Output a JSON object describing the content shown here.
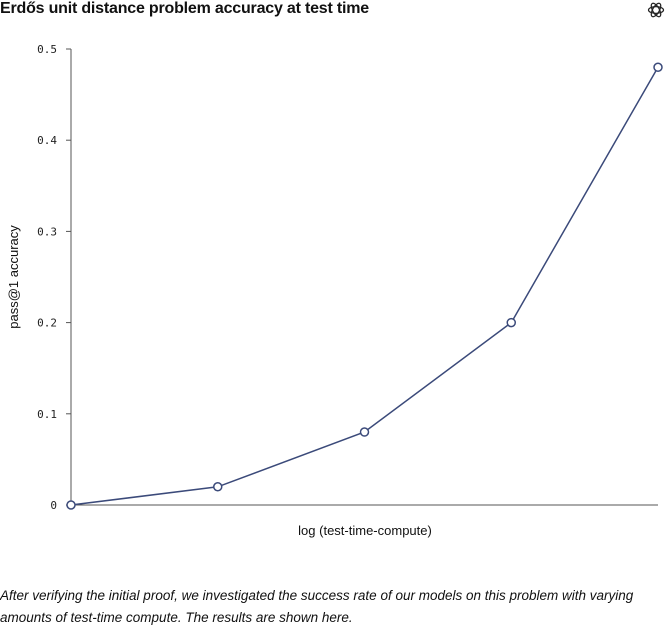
{
  "chart_data": {
    "type": "line",
    "title": "Erdős unit distance problem accuracy at test time",
    "xlabel": "log (test-time-compute)",
    "ylabel": "pass@1 accuracy",
    "x": [
      0,
      1,
      2,
      3,
      4
    ],
    "y": [
      0,
      0.02,
      0.08,
      0.2,
      0.48
    ],
    "ylim": [
      0,
      0.5
    ],
    "yticks": [
      "0",
      "0.1",
      "0.2",
      "0.3",
      "0.4",
      "0.5"
    ],
    "series_color": "#3b4a7a",
    "marker": "open-circle",
    "grid": false
  },
  "brand": {
    "logo_icon": "openai-logo-icon"
  },
  "caption": "After verifying the initial proof, we investigated the success rate of our models on this problem with varying amounts of test-time compute. The results are shown here."
}
